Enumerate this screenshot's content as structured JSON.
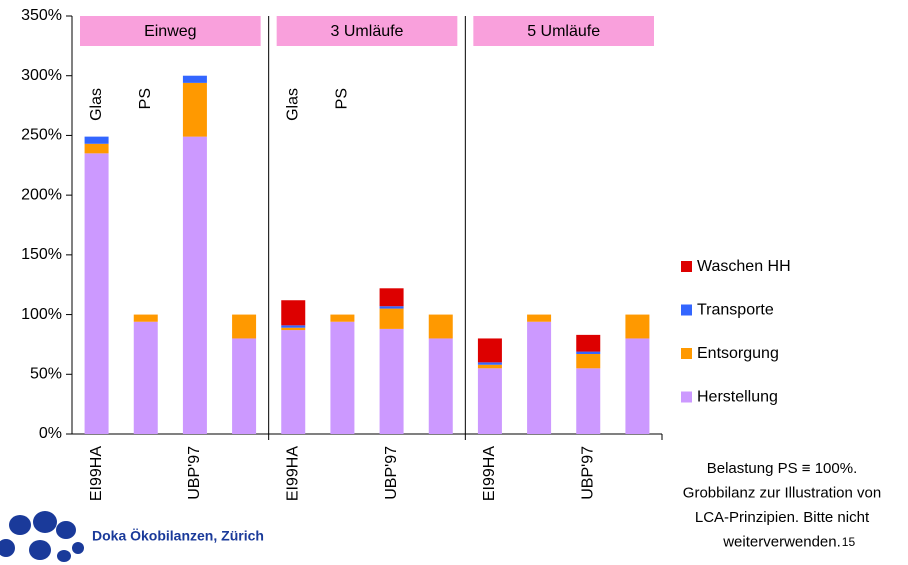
{
  "chart_data": {
    "type": "bar",
    "stacked": true,
    "categories": [
      "EI99HA",
      null,
      "UBP'97",
      null,
      "EI99HA",
      null,
      "UBP'97",
      null,
      "EI99HA",
      null,
      "UBP'97",
      null
    ],
    "groups": [
      "Einweg",
      "3 Umläufe",
      "5 Umläufe"
    ],
    "group_color": "#f9a0dc",
    "bar_annotations": [
      "Glas",
      "PS"
    ],
    "series": [
      {
        "name": "Herstellung",
        "color": "#cc99ff",
        "values": [
          235,
          94,
          249,
          80,
          87,
          94,
          88,
          80,
          55,
          94,
          55,
          80
        ]
      },
      {
        "name": "Entsorgung",
        "color": "#ff9900",
        "values": [
          8,
          6,
          45,
          20,
          2,
          6,
          17,
          20,
          3,
          6,
          12,
          20
        ]
      },
      {
        "name": "Transporte",
        "color": "#3366ff",
        "values": [
          6,
          0,
          6,
          0,
          2,
          0,
          2,
          0,
          2,
          0,
          2,
          0
        ]
      },
      {
        "name": "Waschen HH",
        "color": "#dd0000",
        "values": [
          0,
          0,
          0,
          0,
          21,
          0,
          15,
          0,
          20,
          0,
          14,
          0
        ]
      }
    ],
    "ylim": [
      0,
      350
    ],
    "yticks": [
      {
        "value": 0,
        "label": "0%"
      },
      {
        "value": 50,
        "label": "50%"
      },
      {
        "value": 100,
        "label": "100%"
      },
      {
        "value": 150,
        "label": "150%"
      },
      {
        "value": 200,
        "label": "200%"
      },
      {
        "value": 250,
        "label": "250%"
      },
      {
        "value": 300,
        "label": "300%"
      },
      {
        "value": 350,
        "label": "350%"
      }
    ],
    "legend": "right"
  },
  "footer": {
    "organization": "Doka Ökobilanzen, Zürich",
    "note_lines": [
      "Belastung PS ≡ 100%.",
      "Grobbilanz zur Illustration von",
      "LCA-Prinzipien. Bitte nicht",
      "weiterverwenden."
    ],
    "page_number": "15"
  }
}
